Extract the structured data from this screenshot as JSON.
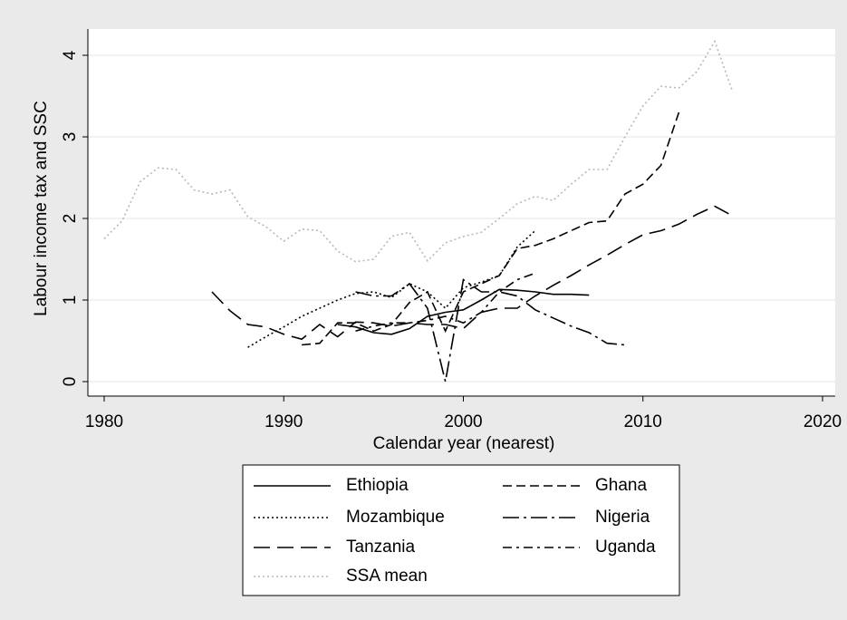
{
  "chart_data": {
    "type": "line",
    "x_label": "Calendar year (nearest)",
    "y_label": "Labour income tax and SSC",
    "xlim": [
      1980,
      2020
    ],
    "xticks": [
      1980,
      1990,
      2000,
      2010,
      2020
    ],
    "ylim": [
      0,
      4
    ],
    "yticks": [
      0,
      1,
      2,
      3,
      4
    ],
    "grid": true,
    "legend": "bottom",
    "x": [
      1980,
      1981,
      1982,
      1983,
      1984,
      1985,
      1986,
      1987,
      1988,
      1989,
      1990,
      1991,
      1992,
      1993,
      1994,
      1995,
      1996,
      1997,
      1998,
      1999,
      2000,
      2001,
      2002,
      2003,
      2004,
      2005,
      2006,
      2007,
      2008,
      2009,
      2010,
      2011,
      2012,
      2013,
      2014,
      2015
    ],
    "series": [
      {
        "name": "Ethiopia",
        "color": "#000000",
        "dash": "solid",
        "values": [
          null,
          null,
          null,
          null,
          null,
          null,
          null,
          null,
          null,
          null,
          null,
          null,
          null,
          0.7,
          0.67,
          0.6,
          0.58,
          0.65,
          0.8,
          0.85,
          0.88,
          1.0,
          1.13,
          1.12,
          1.1,
          1.07,
          1.07,
          1.06,
          null,
          null,
          null,
          null,
          null,
          null,
          null,
          null
        ]
      },
      {
        "name": "Ghana",
        "color": "#000000",
        "dash": "dash",
        "values": [
          null,
          null,
          null,
          null,
          null,
          null,
          null,
          null,
          null,
          null,
          null,
          0.45,
          0.47,
          0.72,
          0.72,
          0.62,
          0.7,
          0.97,
          1.1,
          0.62,
          1.1,
          1.2,
          1.3,
          1.63,
          1.67,
          1.75,
          1.85,
          1.95,
          1.97,
          2.3,
          2.42,
          2.65,
          3.3,
          null,
          null,
          null
        ]
      },
      {
        "name": "Mozambique",
        "color": "#000000",
        "dash": "dot",
        "values": [
          null,
          null,
          null,
          null,
          null,
          null,
          null,
          null,
          0.42,
          0.55,
          0.67,
          0.8,
          0.9,
          1.0,
          1.08,
          1.1,
          1.03,
          1.2,
          1.1,
          0.9,
          1.15,
          1.22,
          1.3,
          1.65,
          1.85,
          null,
          null,
          null,
          null,
          null,
          null,
          null,
          null,
          null,
          null,
          null
        ]
      },
      {
        "name": "Nigeria",
        "color": "#000000",
        "dash": "longdash-dot",
        "values": [
          null,
          null,
          null,
          null,
          null,
          null,
          null,
          null,
          null,
          null,
          null,
          null,
          null,
          null,
          1.1,
          1.05,
          1.05,
          1.2,
          0.9,
          0.0,
          1.25,
          1.1,
          1.1,
          1.05,
          0.88,
          0.78,
          0.68,
          0.6,
          0.47,
          0.45,
          null,
          null,
          null,
          null,
          null,
          null
        ]
      },
      {
        "name": "Tanzania",
        "color": "#000000",
        "dash": "longdash",
        "values": [
          null,
          null,
          null,
          null,
          null,
          null,
          1.1,
          0.87,
          0.7,
          0.67,
          0.58,
          0.52,
          0.7,
          0.55,
          0.73,
          0.72,
          0.68,
          0.72,
          0.7,
          0.7,
          0.65,
          0.85,
          0.9,
          0.9,
          1.05,
          1.18,
          1.3,
          1.43,
          1.55,
          1.68,
          1.8,
          1.85,
          1.93,
          2.05,
          2.15,
          2.03
        ]
      },
      {
        "name": "Uganda",
        "color": "#000000",
        "dash": "dash-dot",
        "values": [
          null,
          null,
          null,
          null,
          null,
          null,
          null,
          null,
          null,
          null,
          null,
          null,
          null,
          null,
          0.62,
          0.68,
          0.72,
          0.72,
          0.75,
          0.8,
          0.72,
          0.85,
          1.1,
          1.25,
          1.33,
          null,
          null,
          null,
          null,
          null,
          null,
          null,
          null,
          null,
          null,
          null
        ]
      },
      {
        "name": "SSA mean",
        "color": "#b8b8b8",
        "dash": "dot",
        "values": [
          1.75,
          1.97,
          2.45,
          2.62,
          2.6,
          2.35,
          2.3,
          2.35,
          2.02,
          1.9,
          1.72,
          1.87,
          1.85,
          1.6,
          1.47,
          1.5,
          1.78,
          1.83,
          1.48,
          1.7,
          1.78,
          1.83,
          2.0,
          2.18,
          2.27,
          2.22,
          2.42,
          2.6,
          2.6,
          3.0,
          3.38,
          3.62,
          3.6,
          3.8,
          4.17,
          3.55
        ]
      }
    ]
  }
}
